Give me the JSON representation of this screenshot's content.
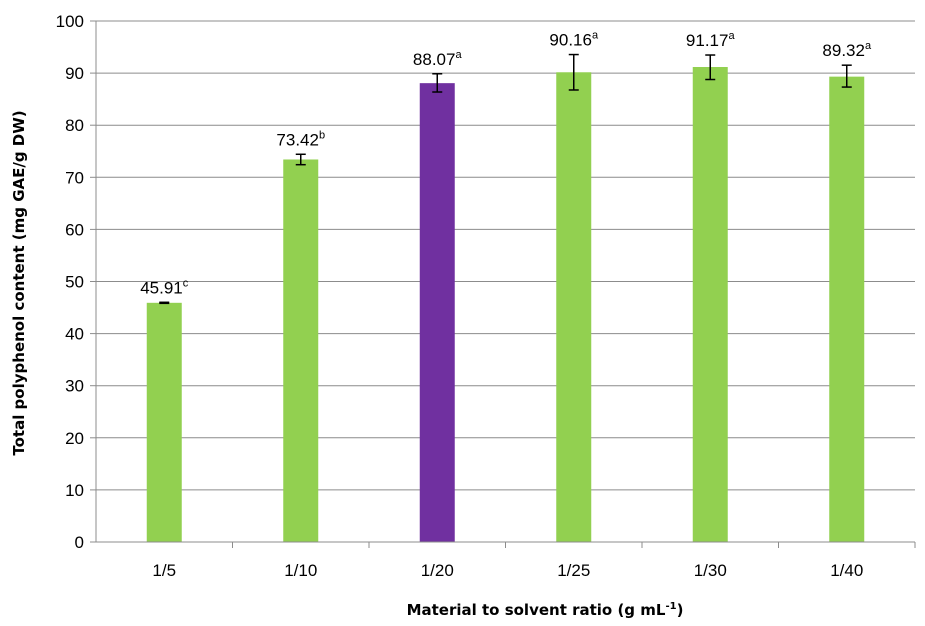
{
  "chart_data": {
    "type": "bar",
    "xlabel": "Material to solvent ratio (g mL",
    "xlabel_sup": "-1",
    "xlabel_end": ")",
    "ylabel": "Total polyphenol content (mg GAE/g DW)",
    "ylim": [
      0,
      100
    ],
    "yticks": [
      "0",
      "10",
      "20",
      "30",
      "40",
      "50",
      "60",
      "70",
      "80",
      "90",
      "100"
    ],
    "grid": true,
    "categories": [
      "1/5",
      "1/10",
      "1/20",
      "1/25",
      "1/30",
      "1/40"
    ],
    "values": [
      45.91,
      73.42,
      88.07,
      90.16,
      91.17,
      89.32
    ],
    "error_low": [
      45.81,
      72.42,
      86.37,
      86.76,
      88.77,
      87.32
    ],
    "error_high": [
      46.01,
      74.42,
      89.87,
      93.56,
      93.47,
      91.52
    ],
    "data_labels": [
      "45.91",
      "73.42",
      "88.07",
      "90.16",
      "91.17",
      "89.32"
    ],
    "letters": [
      "c",
      "b",
      "a",
      "a",
      "a",
      "a"
    ],
    "colors": [
      "#92d050",
      "#92d050",
      "#7030a0",
      "#92d050",
      "#92d050",
      "#92d050"
    ]
  }
}
